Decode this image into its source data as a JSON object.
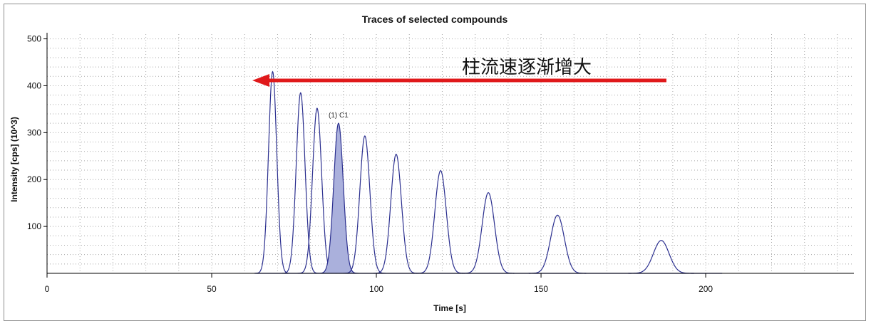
{
  "chart_data": {
    "type": "line",
    "title": "Traces of selected compounds",
    "xlabel": "Time [s]",
    "ylabel": "Intensity [cps] (10^3)",
    "xlim": [
      0,
      245
    ],
    "ylim": [
      0,
      510
    ],
    "x_ticks": [
      0,
      50,
      100,
      150,
      200
    ],
    "y_ticks": [
      100,
      200,
      300,
      400,
      500
    ],
    "grid": true,
    "series": [
      {
        "peaks": [
          {
            "time": 68.5,
            "height": 430
          },
          {
            "time": 77.0,
            "height": 385
          },
          {
            "time": 82.0,
            "height": 352
          },
          {
            "time": 88.5,
            "height": 320,
            "label": "(1) C1",
            "highlighted": true
          },
          {
            "time": 96.5,
            "height": 293
          },
          {
            "time": 106.0,
            "height": 254
          },
          {
            "time": 119.5,
            "height": 219
          },
          {
            "time": 134.0,
            "height": 172
          },
          {
            "time": 155.0,
            "height": 124
          },
          {
            "time": 186.5,
            "height": 70
          }
        ],
        "color": "#2b2f8f"
      }
    ],
    "annotation": {
      "text": "柱流速逐渐增大",
      "arrow_color": "#e0191b"
    }
  }
}
